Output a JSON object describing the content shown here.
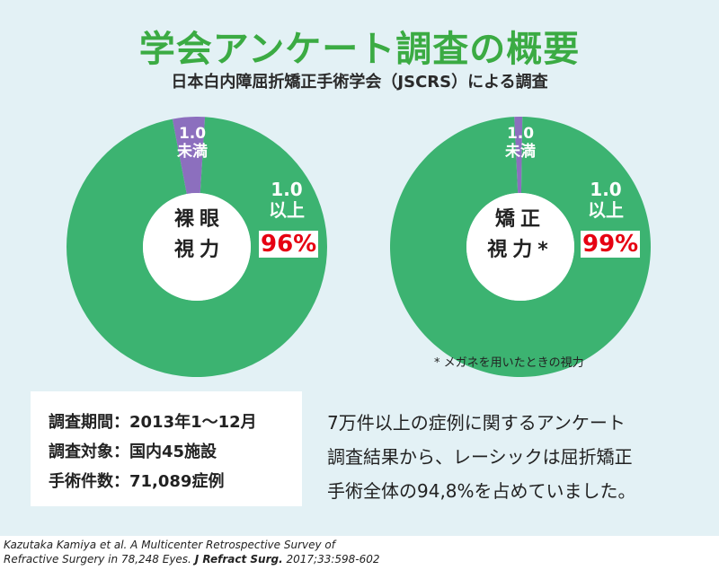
{
  "header": {
    "title": "学会アンケート調査の概要",
    "subtitle": "日本白内障屈折矯正手術学会（JSCRS）による調査"
  },
  "colors": {
    "title_green": "#3bab43",
    "donut_green": "#3cb371",
    "minority_purple": "#8c6fbe",
    "percent_red": "#e60012",
    "panel_bg": "#e3f1f5"
  },
  "chart_data": [
    {
      "type": "pie",
      "center_label_line1": "裸眼",
      "center_label_line2": "視力",
      "slices": [
        {
          "label_line1": "1.0",
          "label_line2": "以上",
          "value": 96,
          "value_label": "96%"
        },
        {
          "label_line1": "1.0",
          "label_line2": "未満",
          "value": 4
        }
      ]
    },
    {
      "type": "pie",
      "center_label_line1": "矯正",
      "center_label_line2": "視力*",
      "slices": [
        {
          "label_line1": "1.0",
          "label_line2": "以上",
          "value": 99,
          "value_label": "99%"
        },
        {
          "label_line1": "1.0",
          "label_line2": "未満",
          "value": 1
        }
      ]
    }
  ],
  "footnote": "* メガネを用いたときの視力",
  "info": {
    "rows": [
      "調査期間：2013年1〜12月",
      "調査対象：国内45施設",
      "手術件数：71,089症例"
    ]
  },
  "summary": {
    "lines": [
      "7万件以上の症例に関するアンケート",
      "調査結果から、レーシックは屈折矯正",
      "手術全体の94,8%を占めていました。"
    ]
  },
  "citation": {
    "line1": "Kazutaka Kamiya et al. A Multicenter Retrospective Survey of",
    "line2_text": "Refractive Surgery in 78,248 Eyes.",
    "line2_journal": "J Refract Surg.",
    "line2_ref": "2017;33:598-602"
  }
}
